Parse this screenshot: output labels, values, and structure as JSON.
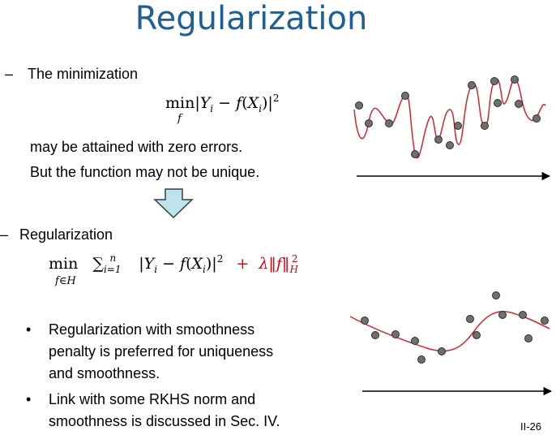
{
  "slide": {
    "title": "Regularization",
    "dash1": "–",
    "item1": "The minimization",
    "item1_note1": "may be attained with zero errors.",
    "item1_note2": "But the function may not be unique.",
    "dash2": "–",
    "item2": "Regularization",
    "bullet_glyph": "•",
    "bullets": [
      [
        "Regularization with smoothness",
        "penalty is preferred for uniqueness",
        "and smoothness."
      ],
      [
        "Link with some RKHS norm and",
        "smoothness is discussed in Sec. IV."
      ]
    ],
    "slide_number": "II-26"
  },
  "formula1": {
    "op": "min",
    "under": "f",
    "text_left": "|",
    "Y": "Y",
    "i": "i",
    "minus": " − ",
    "f": "f",
    "X": "X",
    "close": ")|",
    "pow": "2"
  },
  "formula2": {
    "op": "min",
    "under": "f∈H",
    "sum": "∑",
    "sum_sub": "i=1",
    "sum_sup": "n",
    "plus": "+",
    "lambda": "λ‖f‖",
    "norm_sub": "H",
    "norm_sup": "2"
  },
  "colors": {
    "title": "#1f5f93",
    "curve": "#d0262b",
    "point": "#707070",
    "arrow_fill": "#bfe3ea",
    "penalty": "#e0000a"
  }
}
